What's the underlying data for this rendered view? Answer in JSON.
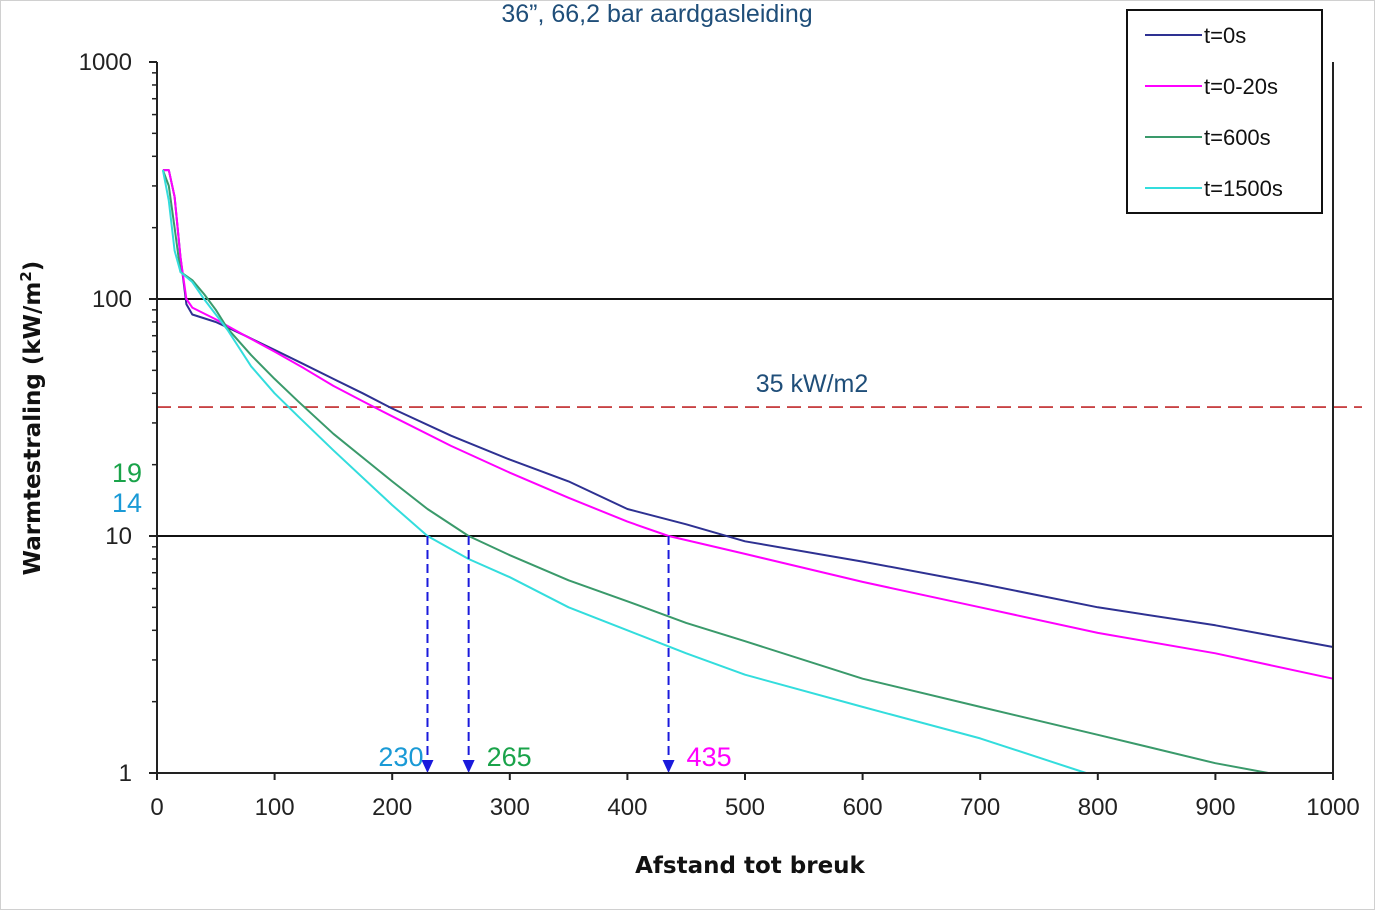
{
  "chart_data": {
    "type": "line",
    "title": "36”, 66,2 bar aardgasleiding",
    "xlabel": "Afstand tot breuk",
    "ylabel_main": "Warmtestraling (kW/m",
    "ylabel_sup": "2",
    "ylabel_close": ")",
    "xlim": [
      0,
      1000
    ],
    "ylim": [
      1,
      1000
    ],
    "yscale": "log",
    "x_ticks": [
      "0",
      "100",
      "200",
      "300",
      "400",
      "500",
      "600",
      "700",
      "800",
      "900",
      "1000"
    ],
    "y_ticks": [
      {
        "value": 1,
        "label": "1"
      },
      {
        "value": 10,
        "label": "10"
      },
      {
        "value": 100,
        "label": "100"
      },
      {
        "value": 1000,
        "label": "1000"
      }
    ],
    "gridlines_y": [
      10,
      100
    ],
    "legend_position": "top-right",
    "series": [
      {
        "name": "t=0s",
        "color": "#2e3192",
        "points": [
          [
            5,
            350
          ],
          [
            10,
            350
          ],
          [
            15,
            270
          ],
          [
            20,
            150
          ],
          [
            25,
            95
          ],
          [
            30,
            86
          ],
          [
            50,
            80
          ],
          [
            75,
            70
          ],
          [
            100,
            61
          ],
          [
            125,
            53
          ],
          [
            150,
            46
          ],
          [
            175,
            40
          ],
          [
            200,
            34.5
          ],
          [
            250,
            26.5
          ],
          [
            300,
            21
          ],
          [
            350,
            17
          ],
          [
            400,
            13
          ],
          [
            450,
            11.2
          ],
          [
            500,
            9.5
          ],
          [
            600,
            7.8
          ],
          [
            700,
            6.3
          ],
          [
            800,
            5.0
          ],
          [
            900,
            4.2
          ],
          [
            1000,
            3.4
          ]
        ]
      },
      {
        "name": "t=0-20s",
        "color": "#ff00ff",
        "points": [
          [
            5,
            350
          ],
          [
            10,
            350
          ],
          [
            15,
            270
          ],
          [
            20,
            150
          ],
          [
            25,
            100
          ],
          [
            30,
            92
          ],
          [
            50,
            82
          ],
          [
            75,
            70
          ],
          [
            100,
            60
          ],
          [
            125,
            51
          ],
          [
            150,
            43
          ],
          [
            175,
            37
          ],
          [
            200,
            32
          ],
          [
            250,
            24
          ],
          [
            300,
            18.5
          ],
          [
            350,
            14.5
          ],
          [
            400,
            11.5
          ],
          [
            435,
            10
          ],
          [
            500,
            8.4
          ],
          [
            600,
            6.4
          ],
          [
            700,
            5.0
          ],
          [
            800,
            3.9
          ],
          [
            900,
            3.2
          ],
          [
            1000,
            2.5
          ]
        ]
      },
      {
        "name": "t=600s",
        "color": "#3a9a6b",
        "points": [
          [
            5,
            350
          ],
          [
            10,
            300
          ],
          [
            15,
            200
          ],
          [
            20,
            130
          ],
          [
            30,
            120
          ],
          [
            40,
            105
          ],
          [
            50,
            90
          ],
          [
            60,
            75
          ],
          [
            80,
            58
          ],
          [
            100,
            46
          ],
          [
            120,
            37
          ],
          [
            150,
            27
          ],
          [
            200,
            17
          ],
          [
            230,
            13
          ],
          [
            265,
            10
          ],
          [
            300,
            8.3
          ],
          [
            350,
            6.5
          ],
          [
            400,
            5.3
          ],
          [
            450,
            4.3
          ],
          [
            500,
            3.6
          ],
          [
            600,
            2.5
          ],
          [
            700,
            1.9
          ],
          [
            800,
            1.45
          ],
          [
            900,
            1.1
          ],
          [
            945,
            1
          ]
        ]
      },
      {
        "name": "t=1500s",
        "color": "#33dddd",
        "points": [
          [
            5,
            350
          ],
          [
            10,
            260
          ],
          [
            15,
            160
          ],
          [
            20,
            130
          ],
          [
            30,
            118
          ],
          [
            40,
            100
          ],
          [
            50,
            86
          ],
          [
            60,
            74
          ],
          [
            80,
            52
          ],
          [
            100,
            40
          ],
          [
            120,
            32
          ],
          [
            150,
            23
          ],
          [
            200,
            13.5
          ],
          [
            230,
            10
          ],
          [
            265,
            8
          ],
          [
            300,
            6.7
          ],
          [
            350,
            5
          ],
          [
            400,
            4
          ],
          [
            450,
            3.2
          ],
          [
            500,
            2.6
          ],
          [
            600,
            1.9
          ],
          [
            700,
            1.4
          ],
          [
            790,
            1
          ]
        ]
      }
    ],
    "threshold_line": {
      "value": 35,
      "label": "35 kW/m2",
      "color": "#c0282a"
    },
    "markers": [
      {
        "x": 230,
        "label": "230",
        "color": "#1a9ad6"
      },
      {
        "x": 265,
        "label": "265",
        "color": "#1aa34a"
      },
      {
        "x": 435,
        "label": "435",
        "color": "#ff00ff"
      }
    ],
    "side_labels": [
      {
        "label": "19",
        "color": "#1aa34a"
      },
      {
        "label": "14",
        "color": "#1a9ad6"
      }
    ],
    "marker_line_color": "#1a1adc"
  }
}
